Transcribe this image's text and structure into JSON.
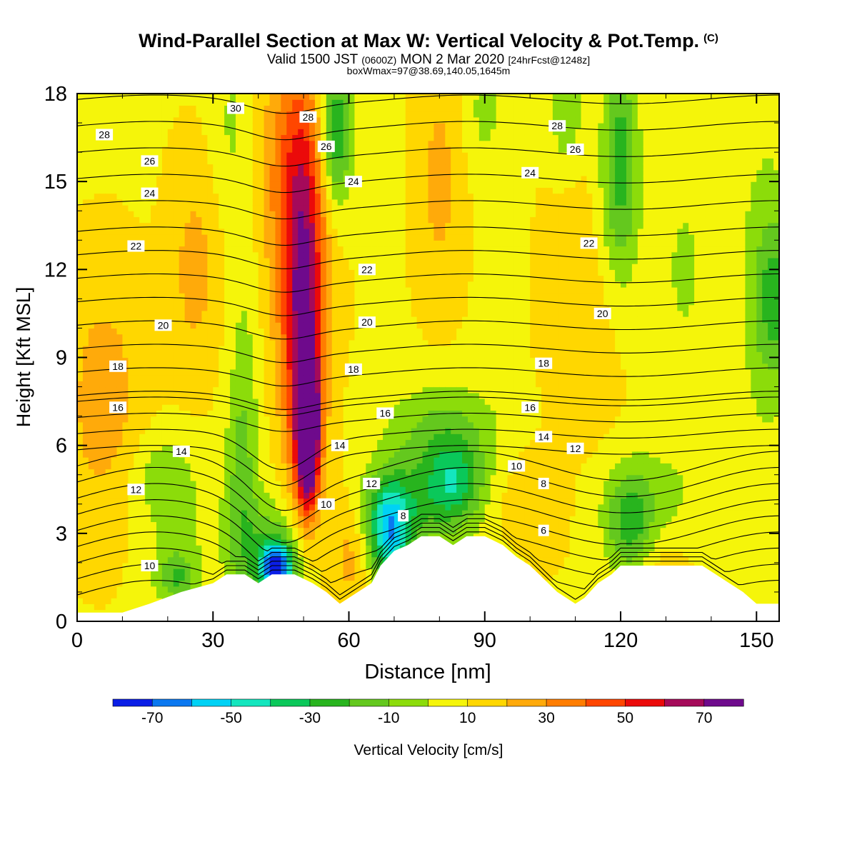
{
  "header": {
    "title": "Wind-Parallel Section at Max W: Vertical Velocity & Pot.Temp.",
    "title_mark": "(C)",
    "line2_pre": "Valid 1500 JST",
    "line2_z": "(0600Z)",
    "line2_mid": "MON 2 Mar 2020",
    "line2_post": "[24hrFcst@1248z]",
    "line3": "boxWmax=97@38.69,140.05,1645m"
  },
  "chart_data": {
    "type": "heatmap",
    "title": "Wind-Parallel Section at Max W: Vertical Velocity & Pot.Temp.",
    "xlabel": "Distance [nm]",
    "ylabel": "Height [Kft MSL]",
    "xlim": [
      0,
      155
    ],
    "ylim": [
      0,
      18
    ],
    "xticks": [
      0,
      30,
      60,
      90,
      120,
      150
    ],
    "yticks": [
      0,
      3,
      6,
      9,
      12,
      15,
      18
    ],
    "colorbar": {
      "label": "Vertical Velocity [cm/s]",
      "tick_values": [
        -70,
        -50,
        -30,
        -10,
        10,
        30,
        50,
        70
      ],
      "bounds": [
        -80,
        -70,
        -60,
        -50,
        -40,
        -30,
        -20,
        -10,
        0,
        10,
        20,
        30,
        40,
        50,
        60,
        70,
        80
      ],
      "colors": [
        "#0a1ee6",
        "#0a78f0",
        "#00d2f5",
        "#14e6be",
        "#0ac85a",
        "#28b41e",
        "#64c81e",
        "#8cdc0a",
        "#f5f50a",
        "#ffd700",
        "#ffaa0a",
        "#ff7d00",
        "#ff4600",
        "#eb0a0a",
        "#a50a5a",
        "#6e0a8c"
      ]
    },
    "terrain": [
      [
        0,
        0.3
      ],
      [
        10,
        0.3
      ],
      [
        16,
        0.6
      ],
      [
        23,
        1.0
      ],
      [
        30,
        1.3
      ],
      [
        33,
        1.6
      ],
      [
        37,
        1.6
      ],
      [
        40,
        1.3
      ],
      [
        43,
        1.6
      ],
      [
        48,
        1.6
      ],
      [
        52,
        1.3
      ],
      [
        55,
        1.0
      ],
      [
        58,
        0.6
      ],
      [
        62,
        1.0
      ],
      [
        65,
        1.3
      ],
      [
        67,
        1.9
      ],
      [
        70,
        2.4
      ],
      [
        73,
        2.6
      ],
      [
        76,
        2.9
      ],
      [
        80,
        2.9
      ],
      [
        83,
        2.6
      ],
      [
        86,
        2.9
      ],
      [
        90,
        2.9
      ],
      [
        94,
        2.6
      ],
      [
        97,
        2.2
      ],
      [
        100,
        1.9
      ],
      [
        102,
        1.6
      ],
      [
        104,
        1.3
      ],
      [
        106,
        1.0
      ],
      [
        110,
        0.6
      ],
      [
        112,
        0.8
      ],
      [
        115,
        1.3
      ],
      [
        118,
        1.6
      ],
      [
        120,
        1.9
      ],
      [
        132,
        1.9
      ],
      [
        138,
        1.9
      ],
      [
        141,
        1.6
      ],
      [
        144,
        1.3
      ],
      [
        147,
        1.0
      ],
      [
        150,
        0.6
      ],
      [
        155,
        0.6
      ]
    ],
    "wcells": [
      {
        "x": 51,
        "z": 6.5,
        "sx": 1.6,
        "sz": 1.7,
        "amp": 90
      },
      {
        "x": 50,
        "z": 9.5,
        "sx": 3.0,
        "sz": 4.0,
        "amp": 50
      },
      {
        "x": 49,
        "z": 13.5,
        "sx": 5.0,
        "sz": 4.0,
        "amp": 25
      },
      {
        "x": 48,
        "z": 16.0,
        "sx": 5.0,
        "sz": 2.5,
        "amp": 15
      },
      {
        "x": 6,
        "z": 7.5,
        "sx": 6.0,
        "sz": 3.0,
        "amp": 17
      },
      {
        "x": 26,
        "z": 12.0,
        "sx": 4.0,
        "sz": 2.5,
        "amp": 15
      },
      {
        "x": 80,
        "z": 15.0,
        "sx": 3.5,
        "sz": 3.0,
        "amp": 14
      },
      {
        "x": 113,
        "z": 11.0,
        "sx": 6.0,
        "sz": 3.5,
        "amp": 12
      },
      {
        "x": 100,
        "z": 4.0,
        "sx": 5.0,
        "sz": 1.3,
        "amp": 12
      },
      {
        "x": 130,
        "z": 1.6,
        "sx": 4.0,
        "sz": 1.0,
        "amp": 10
      },
      {
        "x": 60,
        "z": 2.5,
        "sx": 3.0,
        "sz": 1.5,
        "amp": 16
      },
      {
        "x": 44,
        "z": 1.8,
        "sx": 2.5,
        "sz": 0.6,
        "amp": -75
      },
      {
        "x": 43,
        "z": 2.4,
        "sx": 6.0,
        "sz": 1.3,
        "amp": -25
      },
      {
        "x": 36,
        "z": 4.5,
        "sx": 2.5,
        "sz": 2.5,
        "amp": -15
      },
      {
        "x": 37,
        "z": 8.0,
        "sx": 2.5,
        "sz": 4.0,
        "amp": -12
      },
      {
        "x": 57,
        "z": 17.0,
        "sx": 2.5,
        "sz": 1.5,
        "amp": -35
      },
      {
        "x": 57,
        "z": 15.5,
        "sx": 2.5,
        "sz": 1.8,
        "amp": -15
      },
      {
        "x": 34,
        "z": 17.0,
        "sx": 3.0,
        "sz": 2.5,
        "amp": -10
      },
      {
        "x": 69,
        "z": 2.8,
        "sx": 3.0,
        "sz": 1.2,
        "amp": -50
      },
      {
        "x": 70,
        "z": 3.8,
        "sx": 6.0,
        "sz": 1.0,
        "amp": -25
      },
      {
        "x": 83,
        "z": 4.7,
        "sx": 4.0,
        "sz": 1.0,
        "amp": -32
      },
      {
        "x": 80,
        "z": 5.2,
        "sx": 9.0,
        "sz": 1.8,
        "amp": -18
      },
      {
        "x": 82,
        "z": 6.7,
        "sx": 9.0,
        "sz": 1.0,
        "amp": -10
      },
      {
        "x": 18,
        "z": 5.0,
        "sx": 5.0,
        "sz": 1.0,
        "amp": -12
      },
      {
        "x": 22,
        "z": 3.2,
        "sx": 6.0,
        "sz": 1.8,
        "amp": -10
      },
      {
        "x": 22,
        "z": 1.5,
        "sx": 3.0,
        "sz": 0.6,
        "amp": -25
      },
      {
        "x": 122,
        "z": 3.3,
        "sx": 3.5,
        "sz": 1.2,
        "amp": -28
      },
      {
        "x": 126,
        "z": 4.2,
        "sx": 9.0,
        "sz": 1.4,
        "amp": -12
      },
      {
        "x": 120,
        "z": 16.0,
        "sx": 2.5,
        "sz": 2.5,
        "amp": -25
      },
      {
        "x": 119,
        "z": 14.0,
        "sx": 4.0,
        "sz": 3.0,
        "amp": -15
      },
      {
        "x": 134,
        "z": 12.0,
        "sx": 5.0,
        "sz": 3.5,
        "amp": -10
      },
      {
        "x": 154,
        "z": 11.0,
        "sx": 3.0,
        "sz": 1.8,
        "amp": -25
      },
      {
        "x": 152,
        "z": 11.5,
        "sx": 5.0,
        "sz": 5.0,
        "amp": -12
      },
      {
        "x": 108,
        "z": 17.5,
        "sx": 2.5,
        "sz": 1.5,
        "amp": -20
      },
      {
        "x": 90,
        "z": 17.5,
        "sx": 3.0,
        "sz": 1.5,
        "amp": -12
      },
      {
        "x": 96,
        "z": 1.5,
        "sx": 3.0,
        "sz": 0.6,
        "amp": -8
      }
    ],
    "isentropes": {
      "levels": [
        4,
        5,
        6,
        7,
        8,
        9,
        10,
        11,
        12,
        13,
        14,
        15,
        16,
        17,
        18,
        19,
        20,
        21,
        22,
        23,
        24,
        25,
        26,
        27,
        28,
        29,
        30
      ],
      "dip_x": 45,
      "dip_width": 9,
      "labels": [
        {
          "text": "30",
          "x": 35,
          "z": 17.5
        },
        {
          "text": "28",
          "x": 6,
          "z": 16.6
        },
        {
          "text": "28",
          "x": 51,
          "z": 17.2
        },
        {
          "text": "28",
          "x": 106,
          "z": 16.9
        },
        {
          "text": "26",
          "x": 16,
          "z": 15.7
        },
        {
          "text": "26",
          "x": 55,
          "z": 16.2
        },
        {
          "text": "26",
          "x": 110,
          "z": 16.1
        },
        {
          "text": "24",
          "x": 16,
          "z": 14.6
        },
        {
          "text": "24",
          "x": 61,
          "z": 15.0
        },
        {
          "text": "24",
          "x": 100,
          "z": 15.3
        },
        {
          "text": "22",
          "x": 13,
          "z": 12.8
        },
        {
          "text": "22",
          "x": 64,
          "z": 12.0
        },
        {
          "text": "22",
          "x": 113,
          "z": 12.9
        },
        {
          "text": "20",
          "x": 19,
          "z": 10.1
        },
        {
          "text": "20",
          "x": 64,
          "z": 10.2
        },
        {
          "text": "20",
          "x": 116,
          "z": 10.5
        },
        {
          "text": "18",
          "x": 9,
          "z": 8.7
        },
        {
          "text": "18",
          "x": 61,
          "z": 8.6
        },
        {
          "text": "18",
          "x": 103,
          "z": 8.8
        },
        {
          "text": "16",
          "x": 9,
          "z": 7.3
        },
        {
          "text": "16",
          "x": 68,
          "z": 7.1
        },
        {
          "text": "16",
          "x": 100,
          "z": 7.3
        },
        {
          "text": "14",
          "x": 23,
          "z": 5.8
        },
        {
          "text": "14",
          "x": 58,
          "z": 6.0
        },
        {
          "text": "14",
          "x": 103,
          "z": 6.3
        },
        {
          "text": "12",
          "x": 13,
          "z": 4.5
        },
        {
          "text": "12",
          "x": 65,
          "z": 4.7
        },
        {
          "text": "12",
          "x": 110,
          "z": 5.9
        },
        {
          "text": "10",
          "x": 55,
          "z": 4.0
        },
        {
          "text": "10",
          "x": 97,
          "z": 5.3
        },
        {
          "text": "10",
          "x": 16,
          "z": 1.9
        },
        {
          "text": "8",
          "x": 72,
          "z": 3.6
        },
        {
          "text": "8",
          "x": 103,
          "z": 4.7
        },
        {
          "text": "6",
          "x": 103,
          "z": 3.1
        }
      ]
    }
  }
}
